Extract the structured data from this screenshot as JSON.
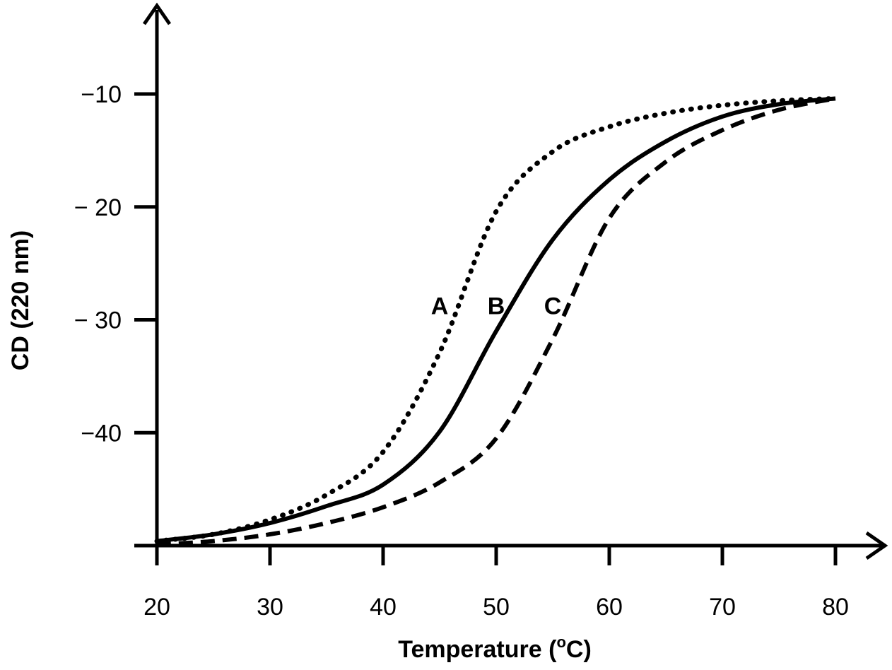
{
  "chart_data": {
    "type": "line",
    "title": "",
    "xlabel": "Temperature (",
    "xlabel_sup": "o",
    "xlabel_end": "C)",
    "ylabel": "CD (220 nm)",
    "xlim": [
      20,
      80
    ],
    "ylim": [
      -50,
      -10
    ],
    "xticks": [
      20,
      30,
      40,
      50,
      60,
      70,
      80
    ],
    "xtick_labels": [
      "20",
      "30",
      "40",
      "50",
      "60",
      "70",
      "80"
    ],
    "yticks": [
      -10,
      -20,
      -30,
      -40
    ],
    "ytick_labels": [
      "−10",
      "− 20",
      "− 30",
      "−40"
    ],
    "grid": false,
    "series": [
      {
        "name": "A",
        "style": "dotted",
        "label_at": [
          45,
          -29.5
        ],
        "x": [
          20,
          25,
          30,
          35,
          40,
          45,
          50,
          55,
          60,
          65,
          70,
          75,
          80
        ],
        "y": [
          -49.6,
          -49.0,
          -47.7,
          -45.5,
          -41.7,
          -32.9,
          -20.4,
          -15.1,
          -12.9,
          -11.7,
          -11.0,
          -10.6,
          -10.4
        ]
      },
      {
        "name": "B",
        "style": "solid",
        "label_at": [
          50,
          -29.5
        ],
        "x": [
          20,
          25,
          30,
          35,
          40,
          45,
          50,
          55,
          60,
          65,
          70,
          75,
          80
        ],
        "y": [
          -49.6,
          -49.0,
          -48.0,
          -46.5,
          -44.6,
          -39.9,
          -31.0,
          -22.9,
          -17.6,
          -14.2,
          -12.0,
          -10.9,
          -10.4
        ]
      },
      {
        "name": "C",
        "style": "dashed",
        "label_at": [
          55,
          -29.5
        ],
        "x": [
          20,
          25,
          30,
          35,
          40,
          45,
          50,
          55,
          60,
          65,
          70,
          75,
          80
        ],
        "y": [
          -49.9,
          -49.6,
          -49.0,
          -48.0,
          -46.6,
          -44.4,
          -40.5,
          -31.7,
          -21.0,
          -16.0,
          -13.2,
          -11.4,
          -10.4
        ]
      }
    ]
  }
}
